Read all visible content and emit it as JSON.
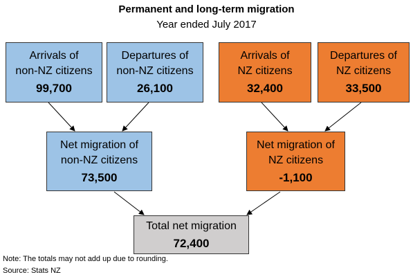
{
  "title": "Permanent and long-term migration",
  "subtitle": "Year ended July 2017",
  "boxes": {
    "arr_non_nz": {
      "label": "Arrivals of\nnon-NZ citizens",
      "value": "99,700"
    },
    "dep_non_nz": {
      "label": "Departures of\nnon-NZ citizens",
      "value": "26,100"
    },
    "arr_nz": {
      "label": "Arrivals of\nNZ citizens",
      "value": "32,400"
    },
    "dep_nz": {
      "label": "Departures of\nNZ citizens",
      "value": "33,500"
    },
    "net_non_nz": {
      "label": "Net migration of\nnon-NZ citizens",
      "value": "73,500"
    },
    "net_nz": {
      "label": "Net migration of\nNZ citizens",
      "value": "-1,100"
    },
    "total": {
      "label": "Total net migration",
      "value": "72,400"
    }
  },
  "colors": {
    "non_nz": "#9dc3e6",
    "nz": "#ed7d31",
    "total": "#d0cece"
  },
  "note": "Note: The totals may not add up due to rounding.",
  "source": "Source: Stats NZ"
}
